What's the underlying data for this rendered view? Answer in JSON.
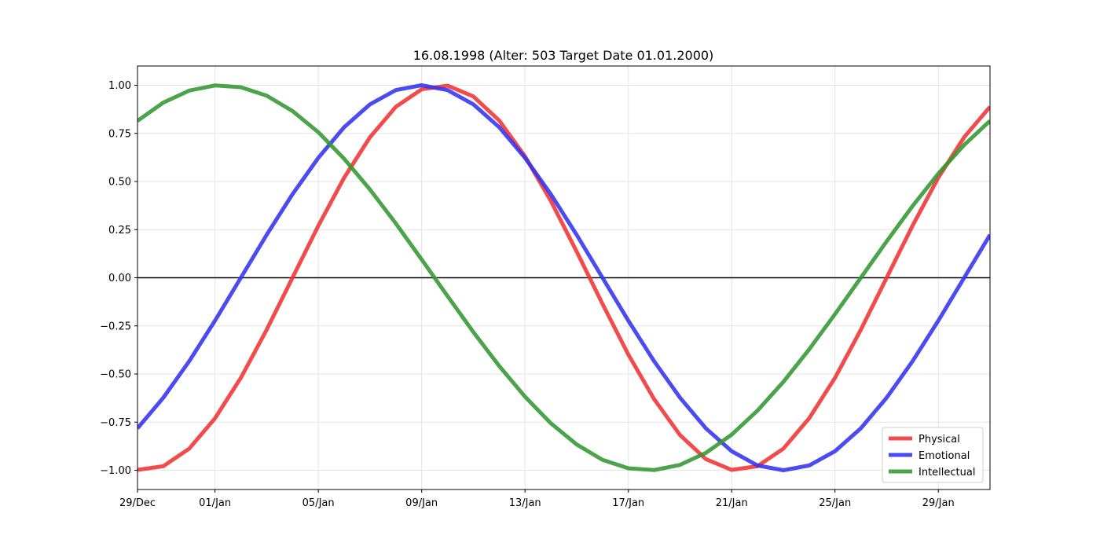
{
  "chart_data": {
    "type": "line",
    "title": "16.08.1998 (Alter: 503 Target Date 01.01.2000)",
    "xlabel": "",
    "ylabel": "",
    "x": [
      "1999-12-29",
      "1999-12-30",
      "1999-12-31",
      "2000-01-01",
      "2000-01-02",
      "2000-01-03",
      "2000-01-04",
      "2000-01-05",
      "2000-01-06",
      "2000-01-07",
      "2000-01-08",
      "2000-01-09",
      "2000-01-10",
      "2000-01-11",
      "2000-01-12",
      "2000-01-13",
      "2000-01-14",
      "2000-01-15",
      "2000-01-16",
      "2000-01-17",
      "2000-01-18",
      "2000-01-19",
      "2000-01-20",
      "2000-01-21",
      "2000-01-22",
      "2000-01-23",
      "2000-01-24",
      "2000-01-25",
      "2000-01-26",
      "2000-01-27",
      "2000-01-28",
      "2000-01-29",
      "2000-01-30",
      "2000-01-31"
    ],
    "xlim": [
      "1999-12-29",
      "2000-01-31"
    ],
    "xticks": [
      "29/Dec",
      "01/Jan",
      "05/Jan",
      "09/Jan",
      "13/Jan",
      "17/Jan",
      "21/Jan",
      "25/Jan",
      "29/Jan"
    ],
    "xtick_dates": [
      "1999-12-29",
      "2000-01-01",
      "2000-01-05",
      "2000-01-09",
      "2000-01-13",
      "2000-01-17",
      "2000-01-21",
      "2000-01-25",
      "2000-01-29"
    ],
    "ylim": [
      -1.1,
      1.1
    ],
    "yticks": [
      1.0,
      0.75,
      0.5,
      0.25,
      0.0,
      -0.25,
      -0.5,
      -0.75,
      -1.0
    ],
    "ytick_labels": [
      "1.00",
      "0.75",
      "0.50",
      "0.25",
      "0.00",
      "−0.25",
      "−0.50",
      "−0.75",
      "−1.00"
    ],
    "grid": true,
    "zero_line": true,
    "legend_position": "bottom-right",
    "series": [
      {
        "name": "Physical",
        "color": "#f03232",
        "values": [
          -0.998,
          -0.979,
          -0.888,
          -0.73,
          -0.52,
          -0.27,
          0.0,
          0.27,
          0.52,
          0.73,
          0.888,
          0.979,
          0.998,
          0.942,
          0.817,
          0.631,
          0.399,
          0.136,
          -0.136,
          -0.399,
          -0.631,
          -0.817,
          -0.942,
          -0.998,
          -0.979,
          -0.888,
          -0.73,
          -0.52,
          -0.27,
          0.0,
          0.27,
          0.52,
          0.73,
          0.888
        ]
      },
      {
        "name": "Emotional",
        "color": "#3232f0",
        "values": [
          -0.782,
          -0.623,
          -0.434,
          -0.223,
          0.0,
          0.223,
          0.434,
          0.623,
          0.782,
          0.901,
          0.975,
          1.0,
          0.975,
          0.901,
          0.782,
          0.623,
          0.434,
          0.223,
          0.0,
          -0.223,
          -0.434,
          -0.623,
          -0.782,
          -0.901,
          -0.975,
          -1.0,
          -0.975,
          -0.901,
          -0.782,
          -0.623,
          -0.434,
          -0.223,
          0.0,
          0.223
        ]
      },
      {
        "name": "Intellectual",
        "color": "#329632",
        "values": [
          0.815,
          0.91,
          0.972,
          0.999,
          0.99,
          0.946,
          0.866,
          0.756,
          0.618,
          0.458,
          0.282,
          0.095,
          -0.095,
          -0.282,
          -0.458,
          -0.618,
          -0.756,
          -0.866,
          -0.946,
          -0.99,
          -0.999,
          -0.972,
          -0.91,
          -0.815,
          -0.69,
          -0.541,
          -0.372,
          -0.189,
          0.0,
          0.189,
          0.372,
          0.541,
          0.69,
          0.815
        ]
      }
    ]
  }
}
